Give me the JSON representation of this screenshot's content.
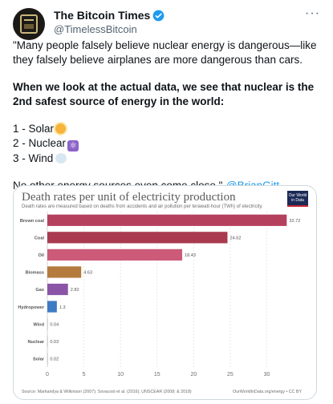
{
  "account": {
    "name": "The Bitcoin Times",
    "handle": "@TimelessBitcoin",
    "more": "···"
  },
  "tweet": {
    "line1": "\"Many people falsely believe nuclear energy is dangerous—like they falsely believe airplanes are more dangerous than cars.",
    "line2": "When we look at the actual data, we see that nuclear is the 2nd safest source of energy in the world:",
    "item1": "1 - Solar",
    "item2": "2 - Nuclear",
    "item3": "3 - Wind",
    "line3": "No other energy sources even come close.\"-",
    "mention": "@BrianGitt"
  },
  "chart": {
    "title": "Death rates per unit of electricity production",
    "subtitle": "Death rates are measured based on deaths from accidents and air pollution per terawatt-hour (TWh) of electricity.",
    "logo": "Our World in Data",
    "source": "Source: Markandya & Wilkinson (2007); Sovacool et al. (2016); UNSCEAR (2008; & 2018)",
    "source_right": "OurWorldInData.org/energy • CC BY"
  },
  "colors": {
    "accent": "#1d9bf0",
    "verified": "#1d9bf0"
  },
  "chart_data": {
    "type": "bar",
    "orientation": "horizontal",
    "title": "Death rates per unit of electricity production",
    "categories": [
      "Brown coal",
      "Coal",
      "Oil",
      "Biomass",
      "Gas",
      "Hydropower",
      "Wind",
      "Nuclear",
      "Solar"
    ],
    "values": [
      32.72,
      24.62,
      18.43,
      4.63,
      2.82,
      1.3,
      0.04,
      0.03,
      0.02
    ],
    "value_labels": [
      "32.72",
      "24.62",
      "18.43",
      "4.63",
      "2.82",
      "1.3",
      "0.04",
      "0.03",
      "0.02"
    ],
    "colors": [
      "#b5405e",
      "#a93a4f",
      "#cc5a78",
      "#b57a3e",
      "#8a55a6",
      "#3f7ac4",
      "#999999",
      "#999999",
      "#999999"
    ],
    "xticks": [
      0,
      5,
      10,
      15,
      20,
      25,
      30
    ],
    "xlim": [
      0,
      34
    ],
    "grid": true
  }
}
